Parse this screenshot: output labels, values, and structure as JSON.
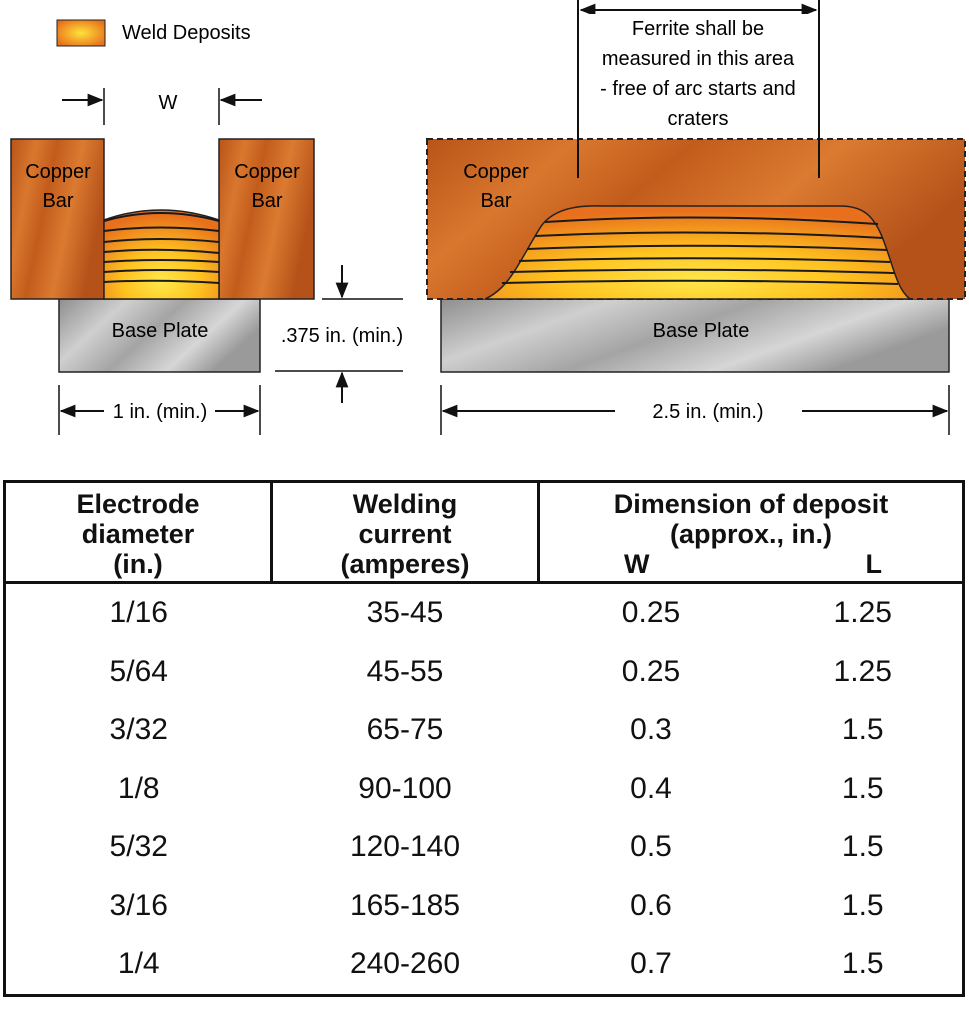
{
  "legend": {
    "label": "Weld Deposits"
  },
  "left_view": {
    "width_label": "W",
    "left_bar_label": [
      "Copper",
      "Bar"
    ],
    "right_bar_label": [
      "Copper",
      "Bar"
    ],
    "base_label": "Base Plate",
    "height_label": ".375 in. (min.)",
    "length_label": "1 in. (min.)"
  },
  "right_view": {
    "note": [
      "Ferrite shall be",
      "measured in this area",
      "- free of arc starts and",
      "craters"
    ],
    "bar_label": [
      "Copper",
      "Bar"
    ],
    "base_label": "Base Plate",
    "length_label": "2.5 in. (min.)"
  },
  "colors": {
    "copper": "#c8621e",
    "weld_core": "#ffd02a",
    "steel": "#a8a8a8"
  },
  "table": {
    "headers": {
      "diameter": [
        "Electrode",
        "diameter",
        "(in.)"
      ],
      "current": [
        "Welding",
        "current",
        "(amperes)"
      ],
      "dimension": [
        "Dimension of deposit",
        "(approx., in.)"
      ],
      "w": "W",
      "l": "L"
    },
    "rows": [
      {
        "diameter": "1/16",
        "current": "35-45",
        "w": "0.25",
        "l": "1.25"
      },
      {
        "diameter": "5/64",
        "current": "45-55",
        "w": "0.25",
        "l": "1.25"
      },
      {
        "diameter": "3/32",
        "current": "65-75",
        "w": "0.3",
        "l": "1.5"
      },
      {
        "diameter": "1/8",
        "current": "90-100",
        "w": "0.4",
        "l": "1.5"
      },
      {
        "diameter": "5/32",
        "current": "120-140",
        "w": "0.5",
        "l": "1.5"
      },
      {
        "diameter": "3/16",
        "current": "165-185",
        "w": "0.6",
        "l": "1.5"
      },
      {
        "diameter": "1/4",
        "current": "240-260",
        "w": "0.7",
        "l": "1.5"
      }
    ]
  }
}
